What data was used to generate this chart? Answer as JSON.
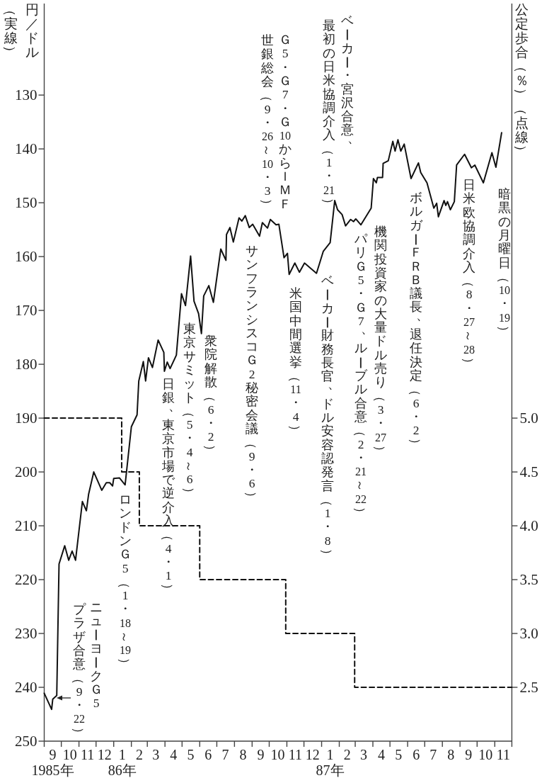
{
  "chart_data": {
    "type": "line",
    "ylabel": "円／ドル（実線）",
    "y2label": "公定歩合（％）（点線）",
    "xlim": [
      "1985-09-01",
      "1987-12-01"
    ],
    "xticks": [
      {
        "value": "1985-09-01",
        "label": null
      },
      {
        "value": "1985-10-01",
        "label": null
      },
      {
        "value": "1985-11-01",
        "label": null
      },
      {
        "value": "1985-12-01",
        "label": null
      },
      {
        "value": "1986-01-01",
        "label": null
      },
      {
        "value": "1986-02-01",
        "label": null
      },
      {
        "value": "1986-03-01",
        "label": null
      },
      {
        "value": "1986-04-01",
        "label": null
      },
      {
        "value": "1986-05-01",
        "label": null
      },
      {
        "value": "1986-06-01",
        "label": null
      },
      {
        "value": "1986-07-01",
        "label": null
      },
      {
        "value": "1986-08-01",
        "label": null
      },
      {
        "value": "1986-09-01",
        "label": null
      },
      {
        "value": "1986-10-01",
        "label": null
      },
      {
        "value": "1986-11-01",
        "label": null
      },
      {
        "value": "1986-12-01",
        "label": null
      },
      {
        "value": "1987-01-01",
        "label": null
      },
      {
        "value": "1987-02-01",
        "label": null
      },
      {
        "value": "1987-03-01",
        "label": null
      },
      {
        "value": "1987-04-01",
        "label": null
      },
      {
        "value": "1987-05-01",
        "label": null
      },
      {
        "value": "1987-06-01",
        "label": null
      },
      {
        "value": "1987-07-01",
        "label": null
      },
      {
        "value": "1987-08-01",
        "label": null
      },
      {
        "value": "1987-09-01",
        "label": null
      },
      {
        "value": "1987-10-01",
        "label": null
      },
      {
        "value": "1987-11-01",
        "label": null
      },
      {
        "value": "1987-12-01",
        "label": null
      },
      {
        "value": "1985-09-16",
        "label": "9\n1985年"
      },
      {
        "value": "1985-10-16",
        "label": "10"
      },
      {
        "value": "1985-11-16",
        "label": "11"
      },
      {
        "value": "1985-12-16",
        "label": "12"
      },
      {
        "value": "1986-01-16",
        "label": "1\n86年"
      },
      {
        "value": "1986-02-15",
        "label": "2"
      },
      {
        "value": "1986-03-16",
        "label": "3"
      },
      {
        "value": "1986-04-16",
        "label": "4"
      },
      {
        "value": "1986-05-16",
        "label": "5"
      },
      {
        "value": "1986-06-16",
        "label": "6"
      },
      {
        "value": "1986-07-16",
        "label": "7"
      },
      {
        "value": "1986-08-16",
        "label": "8"
      },
      {
        "value": "1986-09-16",
        "label": "9"
      },
      {
        "value": "1986-10-16",
        "label": "10"
      },
      {
        "value": "1986-11-16",
        "label": "11"
      },
      {
        "value": "1986-12-16",
        "label": "12"
      },
      {
        "value": "1987-01-16",
        "label": "1\n87年"
      },
      {
        "value": "1987-02-15",
        "label": "2"
      },
      {
        "value": "1987-03-16",
        "label": "3"
      },
      {
        "value": "1987-04-16",
        "label": "4"
      },
      {
        "value": "1987-05-16",
        "label": "5"
      },
      {
        "value": "1987-06-16",
        "label": "6"
      },
      {
        "value": "1987-07-16",
        "label": "7"
      },
      {
        "value": "1987-08-16",
        "label": "8"
      },
      {
        "value": "1987-09-16",
        "label": "9"
      },
      {
        "value": "1987-10-16",
        "label": "10"
      },
      {
        "value": "1987-11-16",
        "label": "11"
      }
    ],
    "ylim": [
      250,
      113
    ],
    "yticks": [
      130,
      140,
      150,
      160,
      170,
      180,
      190,
      200,
      210,
      220,
      230,
      240,
      250
    ],
    "y2lim": [
      2.0,
      8.85
    ],
    "y2ticks": [
      {
        "value": 2.5,
        "label": "2.5"
      },
      {
        "value": 3.0,
        "label": "3.0"
      },
      {
        "value": 3.5,
        "label": "3.5"
      },
      {
        "value": 4.0,
        "label": "4.0"
      },
      {
        "value": 4.5,
        "label": "4.5"
      },
      {
        "value": 5.0,
        "label": "5.0"
      }
    ],
    "series": [
      {
        "color": "#111111",
        "line_style": "solid",
        "x": [
          "1985-09-01",
          "1985-09-14",
          "1985-09-16",
          "1985-09-23",
          "1985-09-27",
          "1985-10-07",
          "1985-10-14",
          "1985-10-20",
          "1985-10-26",
          "1985-11-07",
          "1985-11-14",
          "1985-11-18",
          "1985-11-27",
          "1985-12-11",
          "1985-12-19",
          "1985-12-25",
          "1985-12-30",
          "1986-01-01",
          "1986-01-11",
          "1986-01-21",
          "1986-02-01",
          "1986-02-11",
          "1986-02-14",
          "1986-02-22",
          "1986-02-26",
          "1986-03-03",
          "1986-03-10",
          "1986-03-20",
          "1986-03-30",
          "1986-03-31",
          "1986-04-05",
          "1986-04-10",
          "1986-04-21",
          "1986-04-30",
          "1986-05-07",
          "1986-05-16",
          "1986-05-22",
          "1986-05-30",
          "1986-06-04",
          "1986-06-08",
          "1986-06-17",
          "1986-06-25",
          "1986-07-08",
          "1986-07-17",
          "1986-07-18",
          "1986-07-24",
          "1986-07-30",
          "1986-08-09",
          "1986-08-14",
          "1986-08-20",
          "1986-08-27",
          "1986-09-02",
          "1986-09-14",
          "1986-09-19",
          "1986-09-28",
          "1986-10-03",
          "1986-10-13",
          "1986-10-18",
          "1986-10-27",
          "1986-11-02",
          "1986-11-05",
          "1986-11-15",
          "1986-11-23",
          "1986-12-02",
          "1986-12-23",
          "1987-01-04",
          "1987-01-16",
          "1987-01-24",
          "1987-01-29",
          "1987-02-06",
          "1987-02-12",
          "1987-02-21",
          "1987-02-26",
          "1987-03-02",
          "1987-03-11",
          "1987-03-29",
          "1987-04-02",
          "1987-04-07",
          "1987-04-09",
          "1987-04-18",
          "1987-04-19",
          "1987-04-28",
          "1987-05-06",
          "1987-05-10",
          "1987-05-15",
          "1987-05-20",
          "1987-05-26",
          "1987-06-07",
          "1987-06-20",
          "1987-06-24",
          "1987-07-05",
          "1987-07-17",
          "1987-07-22",
          "1987-07-25",
          "1987-08-04",
          "1987-08-07",
          "1987-08-10",
          "1987-08-15",
          "1987-08-22",
          "1987-08-26",
          "1987-09-09",
          "1987-09-21",
          "1987-09-27",
          "1987-10-12",
          "1987-10-27",
          "1987-11-03",
          "1987-11-13"
        ],
        "values": [
          241.1,
          244.1,
          242.2,
          241.5,
          217.1,
          213.7,
          216.4,
          214.7,
          216.4,
          205.5,
          207.2,
          204.1,
          200.0,
          203.4,
          202.0,
          202.0,
          202.6,
          201.2,
          201.1,
          202.4,
          191.6,
          189.4,
          183.1,
          179.5,
          183.1,
          178.8,
          180.6,
          175.5,
          177.8,
          181.3,
          179.6,
          180.8,
          178.3,
          166.9,
          169.1,
          159.9,
          168.3,
          170.6,
          174.3,
          167.3,
          165.4,
          168.5,
          158.6,
          160.7,
          155.9,
          154.6,
          157.3,
          152.8,
          153.4,
          152.4,
          154.6,
          154.0,
          156.2,
          153.7,
          154.7,
          153.1,
          154.1,
          154.0,
          160.2,
          159.4,
          163.3,
          161.2,
          162.9,
          161.2,
          163.1,
          159.0,
          157.4,
          149.6,
          151.3,
          152.2,
          154.3,
          153.1,
          153.5,
          153.0,
          154.1,
          151.0,
          145.5,
          146.3,
          145.3,
          145.3,
          142.7,
          142.2,
          138.6,
          140.4,
          138.3,
          140.4,
          139.1,
          145.5,
          142.6,
          144.4,
          146.3,
          151.0,
          150.1,
          152.6,
          149.6,
          150.5,
          149.8,
          151.3,
          149.8,
          143.0,
          141.0,
          143.5,
          143.0,
          146.3,
          140.7,
          143.4,
          137.0
        ]
      },
      {
        "type": "step",
        "axis": "y2",
        "color": "#111111",
        "line_style": "dashed",
        "x": [
          "1985-09-01",
          "1986-01-15",
          "1986-02-15",
          "1986-06-01",
          "1986-10-30",
          "1987-02-28",
          "1987-12-01"
        ],
        "values": [
          5.0,
          4.5,
          4.0,
          3.5,
          3.0,
          2.5,
          2.5
        ]
      }
    ],
    "annotations": [
      "ニューヨークＧ5",
      "プラザ合意（9・22）",
      "ロンドンＧ5（1・18～19）",
      "日銀、東京市場で逆介入（4・1）",
      "東京サミット（5・4～6）",
      "衆院解散（6・2）",
      "サンフランシスコＧ2秘密会議（9・6）",
      "Ｇ5・Ｇ7・Ｇ10からＩＭＦ",
      "世銀総会（9・26～10・3）",
      "米国中間選挙（11・4）",
      "ベーカー財務長官、ドル安容認発言（1・8）",
      "ベーカー・宮沢合意、",
      "最初の日米協調介入（1・21）",
      "パリＧ5・Ｇ7、ルーブル合意（2・21～22）",
      "機関投資家の大量ドル売り（3・27）",
      "ボルガーＦＲＢ議長、退任決定（6・2）",
      "日米欧協調介入（8・27～28）",
      "暗黒の月曜日（10・19）"
    ]
  }
}
